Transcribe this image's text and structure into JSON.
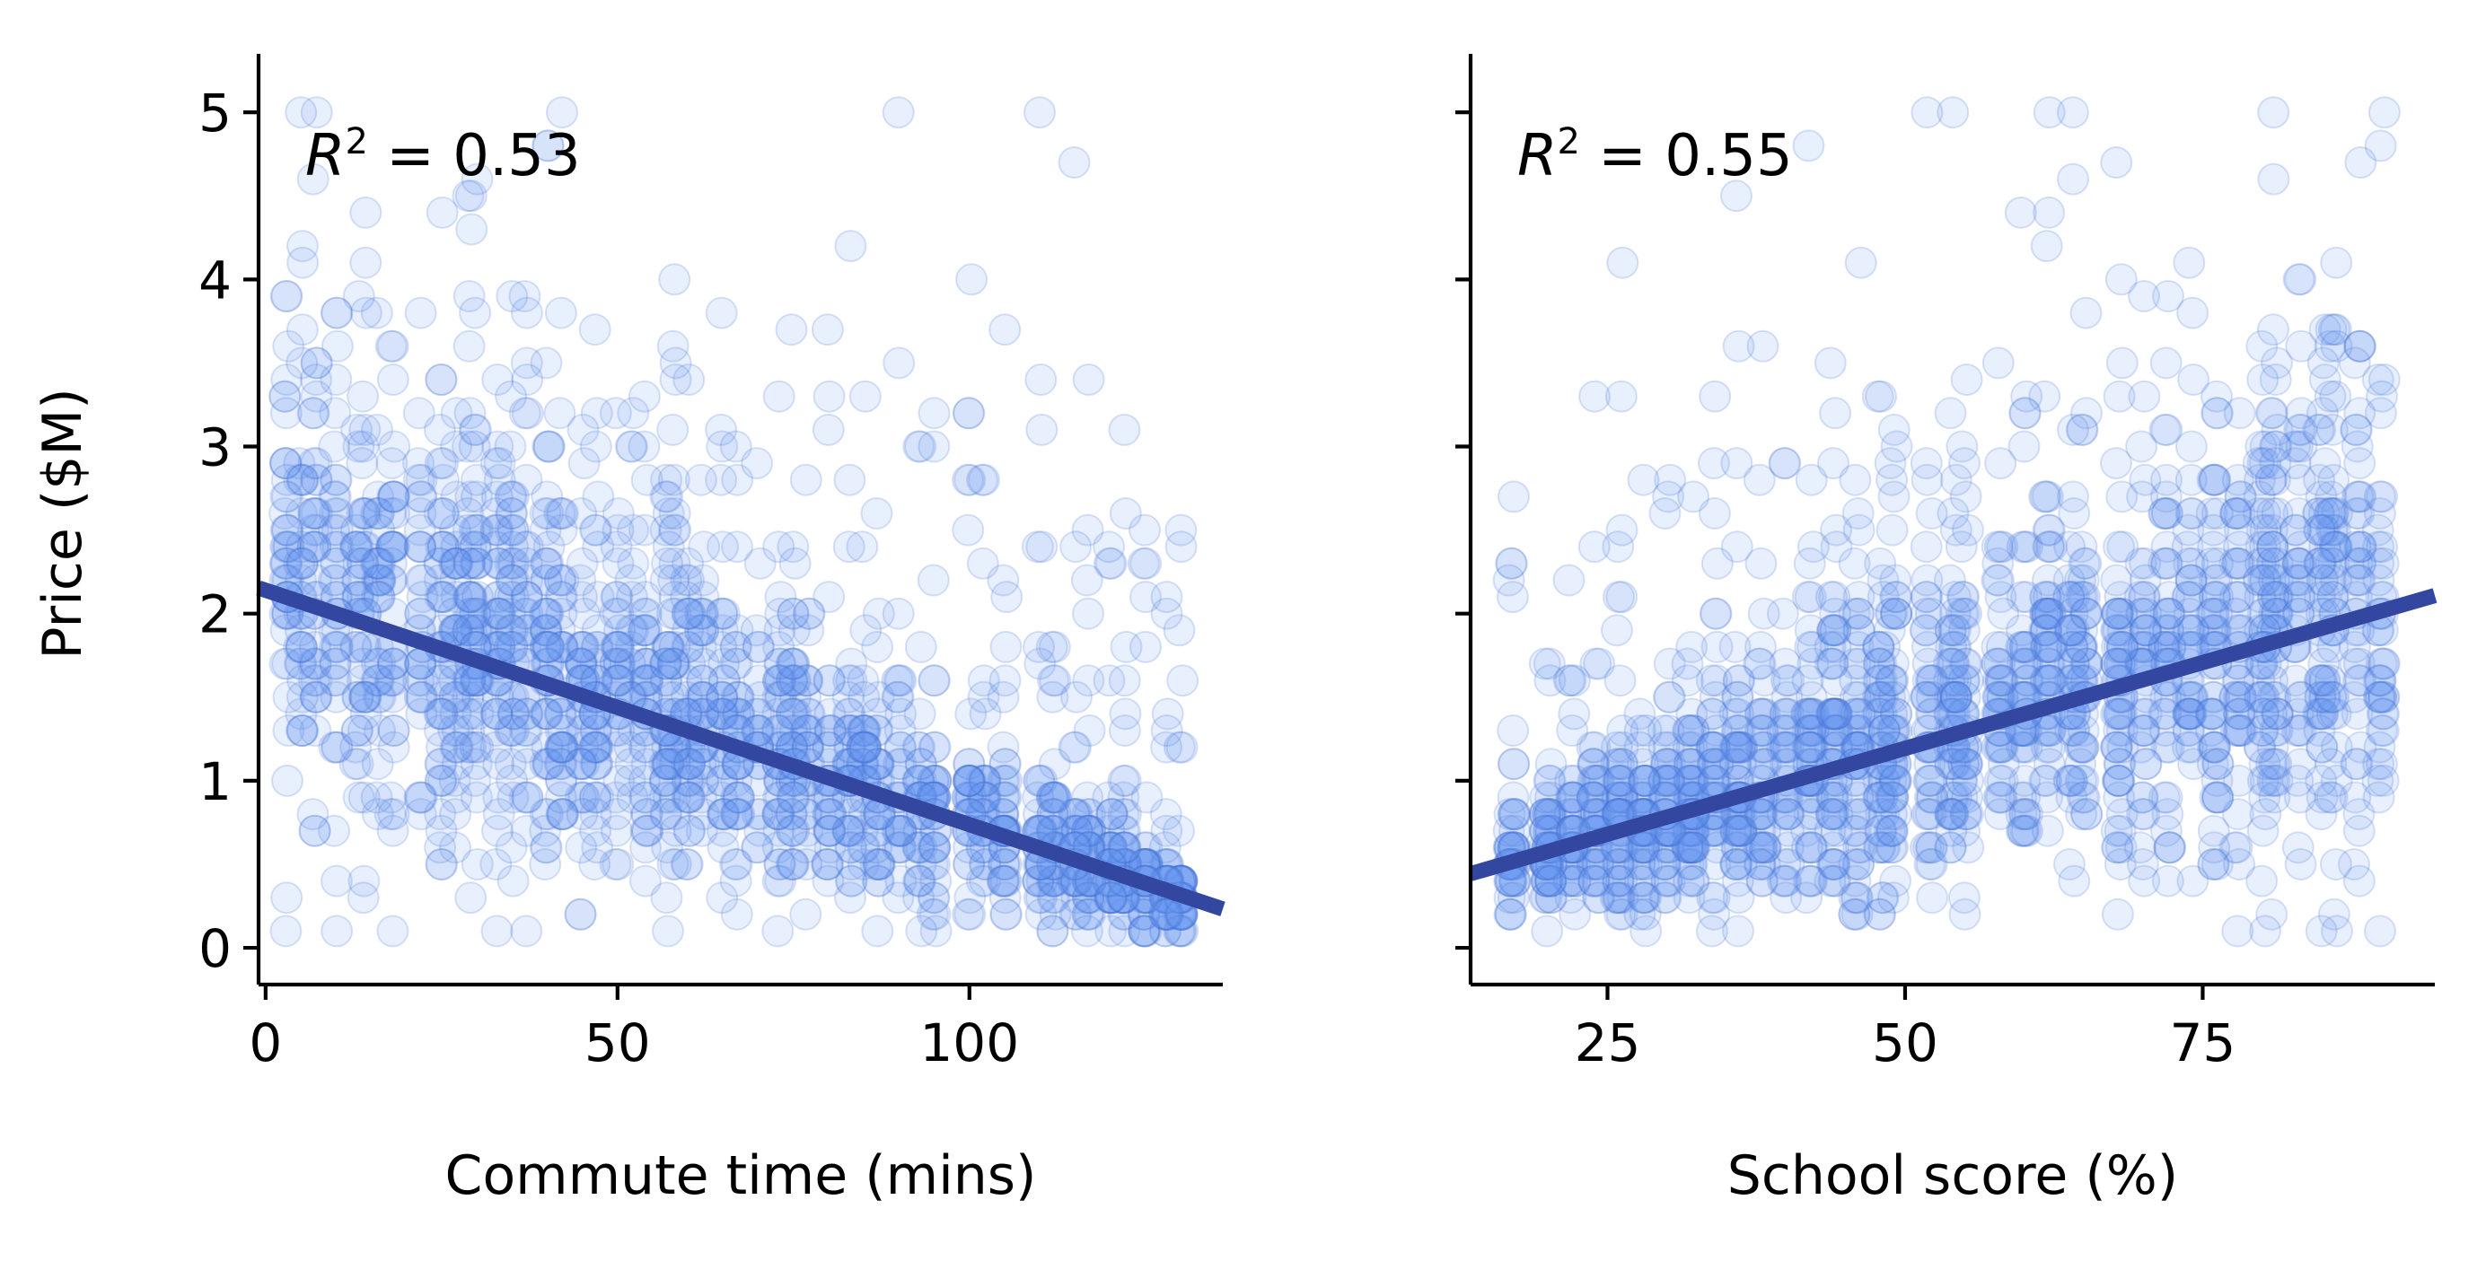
{
  "colors": {
    "point_fill": "#6a9cf0",
    "point_edge": "#3f6fd0",
    "fit_line": "#3347a0"
  },
  "chart_data": [
    {
      "type": "scatter",
      "xlabel": "Commute time (mins)",
      "ylabel": "Price ($M)",
      "annotation_symbol": "R",
      "annotation_sup": "2",
      "annotation_value": " = 0.53",
      "r_squared": 0.53,
      "xlim": [
        -1,
        136
      ],
      "ylim": [
        -0.22,
        5.35
      ],
      "xticks": [
        0,
        50,
        100
      ],
      "yticks": [
        0,
        1,
        2,
        3,
        4,
        5
      ],
      "fit": {
        "slope": -0.01403,
        "intercept": 2.14
      },
      "points": {
        "x_levels": [
          3,
          5,
          7,
          10,
          13,
          14,
          16,
          18,
          22,
          25,
          27,
          29,
          30,
          33,
          35,
          37,
          40,
          42,
          45,
          47,
          50,
          52,
          54,
          57,
          58,
          60,
          62,
          65,
          67,
          70,
          73,
          75,
          77,
          80,
          83,
          85,
          87,
          90,
          93,
          95,
          100,
          102,
          105,
          110,
          112,
          115,
          117,
          120,
          122,
          125,
          128,
          130
        ],
        "noise": 0.35,
        "count": 2000,
        "max_outlier": 5.0,
        "outlier_share": 0.18
      },
      "grid": false,
      "legend": "none"
    },
    {
      "type": "scatter",
      "xlabel": "School score (%)",
      "ylabel": "",
      "annotation_symbol": "R",
      "annotation_sup": "2",
      "annotation_value": " = 0.55",
      "r_squared": 0.55,
      "xlim": [
        13.5,
        94.5
      ],
      "ylim": [
        -0.22,
        5.35
      ],
      "xticks": [
        25,
        50,
        75
      ],
      "yticks": [
        0,
        1,
        2,
        3,
        4,
        5
      ],
      "fit": {
        "slope": 0.02055,
        "intercept": 0.166
      },
      "points": {
        "x_levels": [
          17,
          20,
          22,
          24,
          26,
          28,
          30,
          32,
          34,
          36,
          38,
          40,
          42,
          44,
          46,
          48,
          49,
          52,
          54,
          55,
          58,
          60,
          62,
          64,
          65,
          68,
          70,
          72,
          74,
          76,
          78,
          80,
          81,
          83,
          85,
          86,
          88,
          90
        ],
        "noise": 0.35,
        "count": 2000,
        "max_outlier": 5.0,
        "outlier_share": 0.18
      },
      "grid": false,
      "legend": "none"
    }
  ]
}
